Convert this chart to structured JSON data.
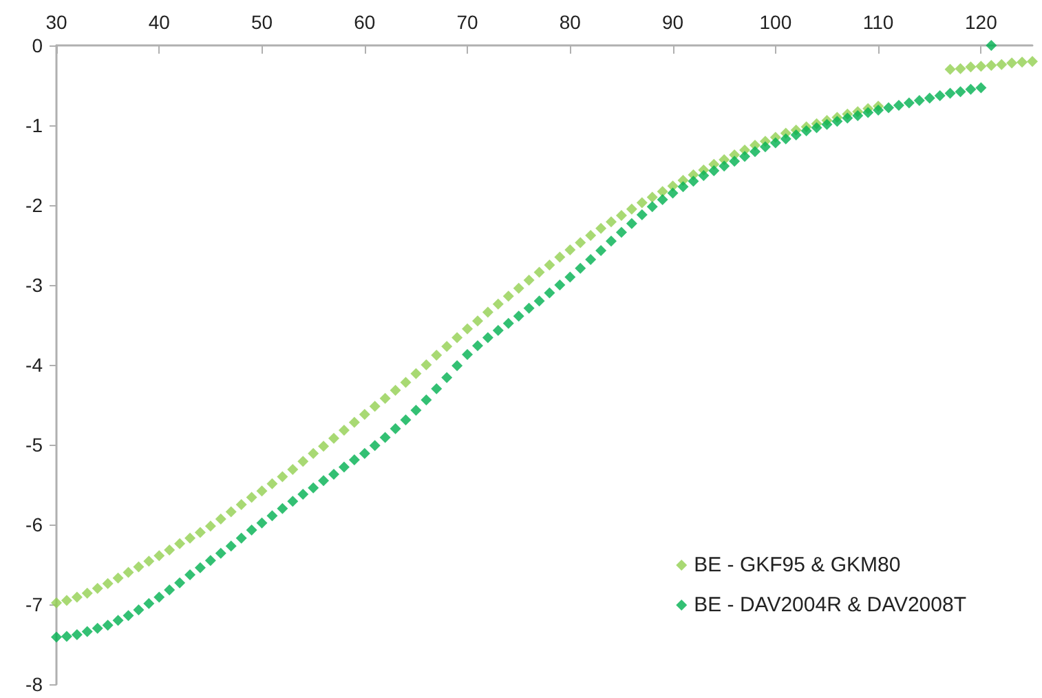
{
  "chart_data": {
    "type": "scatter",
    "x": [
      30,
      31,
      32,
      33,
      34,
      35,
      36,
      37,
      38,
      39,
      40,
      41,
      42,
      43,
      44,
      45,
      46,
      47,
      48,
      49,
      50,
      51,
      52,
      53,
      54,
      55,
      56,
      57,
      58,
      59,
      60,
      61,
      62,
      63,
      64,
      65,
      66,
      67,
      68,
      69,
      70,
      71,
      72,
      73,
      74,
      75,
      76,
      77,
      78,
      79,
      80,
      81,
      82,
      83,
      84,
      85,
      86,
      87,
      88,
      89,
      90,
      91,
      92,
      93,
      94,
      95,
      96,
      97,
      98,
      99,
      100,
      101,
      102,
      103,
      104,
      105,
      106,
      107,
      108,
      109,
      110,
      111,
      112,
      113,
      114,
      115,
      116,
      117,
      118,
      119,
      120,
      121,
      122,
      123,
      124,
      125
    ],
    "series": [
      {
        "name": "BE - GKF95 & GKM80",
        "color": "#92d050",
        "values": [
          -6.98,
          -6.95,
          -6.91,
          -6.86,
          -6.8,
          -6.74,
          -6.67,
          -6.6,
          -6.53,
          -6.46,
          -6.39,
          -6.32,
          -6.24,
          -6.17,
          -6.1,
          -6.02,
          -5.93,
          -5.84,
          -5.75,
          -5.66,
          -5.58,
          -5.49,
          -5.4,
          -5.31,
          -5.21,
          -5.11,
          -5.02,
          -4.92,
          -4.82,
          -4.72,
          -4.62,
          -4.52,
          -4.42,
          -4.32,
          -4.22,
          -4.11,
          -4.0,
          -3.88,
          -3.77,
          -3.66,
          -3.55,
          -3.45,
          -3.34,
          -3.24,
          -3.14,
          -3.04,
          -2.94,
          -2.84,
          -2.75,
          -2.65,
          -2.56,
          -2.47,
          -2.38,
          -2.29,
          -2.21,
          -2.13,
          -2.05,
          -1.97,
          -1.9,
          -1.83,
          -1.76,
          -1.69,
          -1.62,
          -1.56,
          -1.49,
          -1.43,
          -1.37,
          -1.31,
          -1.25,
          -1.2,
          -1.15,
          -1.1,
          -1.06,
          -1.02,
          -0.98,
          -0.94,
          -0.9,
          -0.86,
          -0.83,
          -0.79,
          -0.76,
          null,
          null,
          null,
          null,
          null,
          null,
          -0.3,
          -0.29,
          -0.27,
          -0.26,
          -0.25,
          -0.24,
          -0.22,
          -0.21,
          -0.2
        ]
      },
      {
        "name": "BE - DAV2004R & DAV2008T",
        "color": "#00b050",
        "values": [
          -7.41,
          -7.4,
          -7.38,
          -7.34,
          -7.3,
          -7.26,
          -7.2,
          -7.14,
          -7.07,
          -6.99,
          -6.91,
          -6.82,
          -6.73,
          -6.63,
          -6.54,
          -6.45,
          -6.36,
          -6.27,
          -6.17,
          -6.07,
          -5.98,
          -5.89,
          -5.8,
          -5.71,
          -5.62,
          -5.54,
          -5.45,
          -5.37,
          -5.28,
          -5.19,
          -5.11,
          -5.01,
          -4.91,
          -4.8,
          -4.69,
          -4.57,
          -4.44,
          -4.3,
          -4.16,
          -4.01,
          -3.87,
          -3.76,
          -3.66,
          -3.57,
          -3.48,
          -3.39,
          -3.29,
          -3.2,
          -3.1,
          -3.0,
          -2.9,
          -2.79,
          -2.68,
          -2.57,
          -2.45,
          -2.34,
          -2.23,
          -2.12,
          -2.02,
          -1.93,
          -1.85,
          -1.77,
          -1.7,
          -1.63,
          -1.57,
          -1.51,
          -1.45,
          -1.39,
          -1.33,
          -1.27,
          -1.22,
          -1.17,
          -1.12,
          -1.07,
          -1.03,
          -0.99,
          -0.95,
          -0.91,
          -0.88,
          -0.84,
          -0.81,
          -0.78,
          -0.75,
          -0.72,
          -0.69,
          -0.66,
          -0.63,
          -0.6,
          -0.58,
          -0.55,
          -0.53,
          0,
          null,
          null,
          null,
          null
        ]
      }
    ],
    "xlim": [
      30,
      125
    ],
    "xticks": [
      30,
      40,
      50,
      60,
      70,
      80,
      90,
      100,
      110,
      120
    ],
    "ylim": [
      -8,
      0
    ],
    "yticks": [
      -8,
      -7,
      -6,
      -5,
      -4,
      -3,
      -2,
      -1,
      0
    ],
    "grid": false,
    "legend": "bottom right",
    "marker": "diamond"
  }
}
